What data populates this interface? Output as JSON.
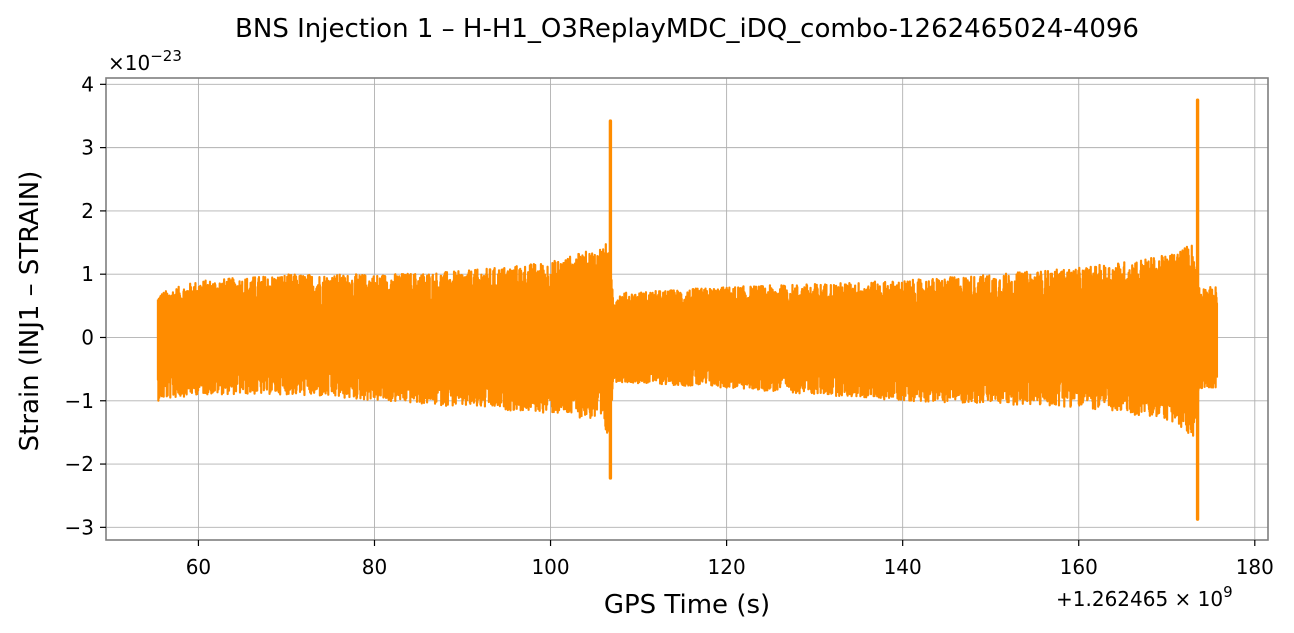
{
  "chart_data": {
    "type": "line",
    "title": "BNS Injection 1 – H-H1_O3ReplayMDC_iDQ_combo-1262465024-4096",
    "xlabel": "GPS Time (s)",
    "ylabel": "Strain (INJ1 – STRAIN)",
    "x_offset_label": "+1.262465 × 10",
    "x_offset_exp": "9",
    "y_scale_label": "×10",
    "y_scale_exp": "−23",
    "xlim": [
      49.5,
      181.5
    ],
    "ylim": [
      -3.2,
      4.1
    ],
    "grid": true,
    "x_ticks": [
      60,
      80,
      100,
      120,
      140,
      160,
      180
    ],
    "x_tick_labels": [
      "60",
      "80",
      "100",
      "120",
      "140",
      "160",
      "180"
    ],
    "y_ticks": [
      -3,
      -2,
      -1,
      0,
      1,
      2,
      3,
      4
    ],
    "y_tick_labels": [
      "−3",
      "−2",
      "−1",
      "0",
      "1",
      "2",
      "3",
      "4"
    ],
    "series": [
      {
        "color": "#ff8c00",
        "x_range": [
          55.4,
          175.7
        ],
        "envelope": [
          {
            "x": 55.4,
            "hi": 0.7,
            "lo": -1.0
          },
          {
            "x": 60,
            "hi": 0.9,
            "lo": -0.9
          },
          {
            "x": 70,
            "hi": 1.0,
            "lo": -0.9
          },
          {
            "x": 80,
            "hi": 1.0,
            "lo": -1.0
          },
          {
            "x": 90,
            "hi": 1.05,
            "lo": -1.1
          },
          {
            "x": 100,
            "hi": 1.2,
            "lo": -1.2
          },
          {
            "x": 105,
            "hi": 1.4,
            "lo": -1.3
          },
          {
            "x": 106.5,
            "hi": 1.5,
            "lo": -1.6
          },
          {
            "x": 107.2,
            "hi": 0.7,
            "lo": -0.7
          },
          {
            "x": 120,
            "hi": 0.8,
            "lo": -0.8
          },
          {
            "x": 140,
            "hi": 0.9,
            "lo": -1.0
          },
          {
            "x": 160,
            "hi": 1.1,
            "lo": -1.1
          },
          {
            "x": 170,
            "hi": 1.3,
            "lo": -1.3
          },
          {
            "x": 173.0,
            "hi": 1.5,
            "lo": -1.6
          },
          {
            "x": 173.8,
            "hi": 0.8,
            "lo": -0.8
          },
          {
            "x": 175.7,
            "hi": 0.8,
            "lo": -0.8
          }
        ],
        "spikes": [
          {
            "x": 106.8,
            "max": 3.42,
            "min": -2.22
          },
          {
            "x": 173.5,
            "max": 3.75,
            "min": -2.87
          }
        ]
      }
    ]
  }
}
